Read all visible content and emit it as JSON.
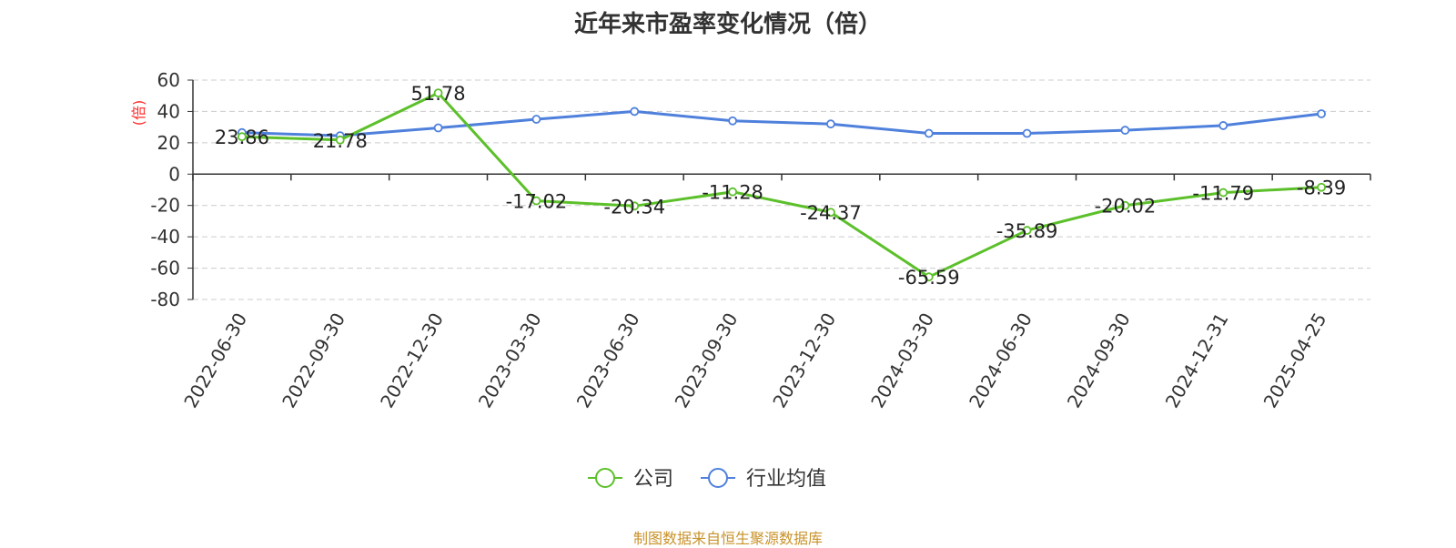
{
  "chart_data": {
    "type": "line",
    "title": "近年来市盈率变化情况（倍）",
    "ylabel": "(倍)",
    "xlabel": "",
    "categories": [
      "2022-06-30",
      "2022-09-30",
      "2022-12-30",
      "2023-03-30",
      "2023-06-30",
      "2023-09-30",
      "2023-12-30",
      "2024-03-30",
      "2024-06-30",
      "2024-09-30",
      "2024-12-31",
      "2025-04-25"
    ],
    "ylim": [
      -80,
      60
    ],
    "yticks": [
      "60",
      "40",
      "20",
      "0",
      "-20",
      "-40",
      "-60",
      "-80"
    ],
    "grid": true,
    "legend_position": "bottom",
    "series": [
      {
        "name": "公司",
        "color": "#5cc02a",
        "values": [
          23.86,
          21.78,
          51.78,
          -17.02,
          -20.34,
          -11.28,
          -24.37,
          -65.59,
          -35.89,
          -20.02,
          -11.79,
          -8.39
        ],
        "labels": [
          "23.86",
          "21.78",
          "51.78",
          "-17.02",
          "-20.34",
          "-11.28",
          "-24.37",
          "-65.59",
          "-35.89",
          "-20.02",
          "-11.79",
          "-8.39"
        ]
      },
      {
        "name": "行业均值",
        "color": "#4e80dc",
        "values": [
          26.5,
          24.5,
          29.5,
          35,
          40,
          34,
          32,
          26,
          26,
          28,
          31,
          38.5
        ]
      }
    ]
  },
  "source_text": "制图数据来自恒生聚源数据库"
}
